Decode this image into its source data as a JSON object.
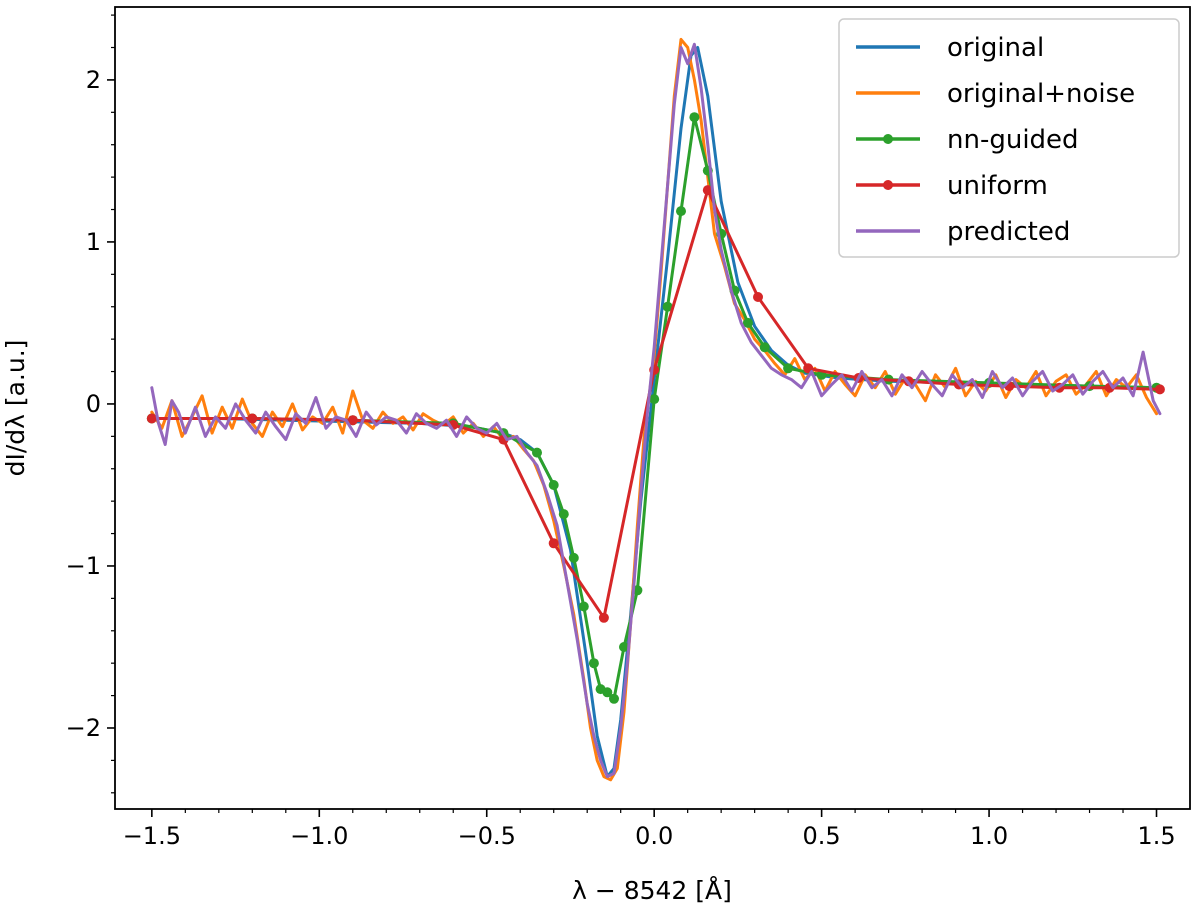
{
  "chart_data": {
    "type": "line",
    "title": "",
    "xlabel": "λ − 8542 [Å]",
    "ylabel": "dI/dλ [a.u.]",
    "xlim": [
      -1.61,
      1.6
    ],
    "ylim": [
      -2.5,
      2.45
    ],
    "xticks": [
      -1.5,
      -1.0,
      -0.5,
      0.0,
      0.5,
      1.0,
      1.5
    ],
    "xtick_labels": [
      "−1.5",
      "−1.0",
      "−0.5",
      "0.0",
      "0.5",
      "1.0",
      "1.5"
    ],
    "yticks": [
      -2,
      -1,
      0,
      1,
      2
    ],
    "ytick_labels": [
      "−2",
      "−1",
      "0",
      "1",
      "2"
    ],
    "grid": false,
    "legend_position": "top-right",
    "series": [
      {
        "name": "original",
        "color": "#1f77b4",
        "markers": false,
        "x": [
          -1.5,
          -1.3,
          -1.1,
          -0.9,
          -0.7,
          -0.55,
          -0.45,
          -0.4,
          -0.35,
          -0.3,
          -0.25,
          -0.2,
          -0.17,
          -0.14,
          -0.12,
          -0.1,
          -0.07,
          -0.04,
          0.0,
          0.04,
          0.08,
          0.11,
          0.13,
          0.16,
          0.2,
          0.25,
          0.3,
          0.35,
          0.4,
          0.45,
          0.55,
          0.7,
          0.9,
          1.1,
          1.3,
          1.5
        ],
        "y": [
          -0.09,
          -0.09,
          -0.1,
          -0.11,
          -0.12,
          -0.14,
          -0.18,
          -0.22,
          -0.3,
          -0.5,
          -0.9,
          -1.6,
          -2.05,
          -2.3,
          -2.25,
          -1.95,
          -1.3,
          -0.6,
          0.15,
          0.9,
          1.7,
          2.15,
          2.2,
          1.9,
          1.25,
          0.75,
          0.48,
          0.33,
          0.24,
          0.19,
          0.16,
          0.14,
          0.13,
          0.12,
          0.11,
          0.1
        ]
      },
      {
        "name": "original+noise",
        "color": "#ff7f0e",
        "markers": false,
        "x": [
          -1.5,
          -1.47,
          -1.44,
          -1.41,
          -1.38,
          -1.35,
          -1.32,
          -1.29,
          -1.26,
          -1.23,
          -1.2,
          -1.17,
          -1.14,
          -1.11,
          -1.08,
          -1.05,
          -1.02,
          -0.99,
          -0.96,
          -0.93,
          -0.9,
          -0.87,
          -0.84,
          -0.81,
          -0.78,
          -0.75,
          -0.72,
          -0.69,
          -0.66,
          -0.63,
          -0.6,
          -0.57,
          -0.54,
          -0.51,
          -0.48,
          -0.45,
          -0.42,
          -0.39,
          -0.36,
          -0.33,
          -0.3,
          -0.27,
          -0.24,
          -0.21,
          -0.19,
          -0.17,
          -0.15,
          -0.13,
          -0.11,
          -0.09,
          -0.07,
          -0.05,
          -0.03,
          0.0,
          0.02,
          0.04,
          0.06,
          0.08,
          0.1,
          0.12,
          0.14,
          0.16,
          0.18,
          0.21,
          0.24,
          0.27,
          0.3,
          0.33,
          0.36,
          0.39,
          0.42,
          0.45,
          0.48,
          0.51,
          0.54,
          0.57,
          0.6,
          0.63,
          0.66,
          0.69,
          0.72,
          0.75,
          0.78,
          0.81,
          0.84,
          0.87,
          0.9,
          0.93,
          0.96,
          0.99,
          1.02,
          1.05,
          1.08,
          1.11,
          1.14,
          1.17,
          1.2,
          1.23,
          1.26,
          1.29,
          1.32,
          1.35,
          1.38,
          1.41,
          1.44,
          1.47,
          1.5
        ],
        "y": [
          -0.05,
          -0.15,
          0.02,
          -0.2,
          -0.08,
          0.05,
          -0.18,
          -0.02,
          -0.15,
          0.03,
          -0.12,
          -0.2,
          -0.05,
          -0.14,
          0.0,
          -0.16,
          -0.08,
          -0.12,
          -0.02,
          -0.18,
          0.08,
          -0.1,
          -0.15,
          -0.05,
          -0.12,
          -0.08,
          -0.16,
          -0.06,
          -0.1,
          -0.13,
          -0.08,
          -0.18,
          -0.12,
          -0.2,
          -0.14,
          -0.22,
          -0.2,
          -0.28,
          -0.35,
          -0.5,
          -0.72,
          -1.0,
          -1.3,
          -1.7,
          -2.0,
          -2.2,
          -2.3,
          -2.32,
          -2.25,
          -1.9,
          -1.35,
          -0.75,
          -0.2,
          0.3,
          0.8,
          1.35,
          1.9,
          2.25,
          2.2,
          2.0,
          1.75,
          1.4,
          1.05,
          0.85,
          0.62,
          0.52,
          0.4,
          0.33,
          0.25,
          0.18,
          0.28,
          0.15,
          0.22,
          0.08,
          0.2,
          0.12,
          0.05,
          0.18,
          0.1,
          0.2,
          0.06,
          0.16,
          0.12,
          0.02,
          0.18,
          0.1,
          0.22,
          0.05,
          0.14,
          0.08,
          0.18,
          0.04,
          0.15,
          0.1,
          0.2,
          0.05,
          0.14,
          0.18,
          0.06,
          0.12,
          0.2,
          0.05,
          0.15,
          0.1,
          0.18,
          0.04,
          -0.06
        ]
      },
      {
        "name": "nn-guided",
        "color": "#2ca02c",
        "markers": true,
        "x": [
          -1.5,
          -1.2,
          -0.9,
          -0.6,
          -0.45,
          -0.35,
          -0.3,
          -0.27,
          -0.24,
          -0.21,
          -0.18,
          -0.16,
          -0.14,
          -0.12,
          -0.09,
          -0.05,
          0.0,
          0.04,
          0.08,
          0.12,
          0.16,
          0.2,
          0.24,
          0.28,
          0.33,
          0.4,
          0.5,
          0.7,
          1.0,
          1.3,
          1.5
        ],
        "y": [
          -0.09,
          -0.09,
          -0.1,
          -0.12,
          -0.18,
          -0.3,
          -0.5,
          -0.68,
          -0.95,
          -1.25,
          -1.6,
          -1.76,
          -1.78,
          -1.82,
          -1.5,
          -1.15,
          0.03,
          0.6,
          1.19,
          1.77,
          1.44,
          1.05,
          0.7,
          0.5,
          0.35,
          0.22,
          0.18,
          0.15,
          0.13,
          0.11,
          0.1
        ]
      },
      {
        "name": "uniform",
        "color": "#d62728",
        "markers": true,
        "x": [
          -1.5,
          -1.2,
          -0.9,
          -0.6,
          -0.45,
          -0.3,
          -0.15,
          0.0,
          0.16,
          0.31,
          0.46,
          0.61,
          0.76,
          0.91,
          1.06,
          1.21,
          1.36,
          1.51
        ],
        "y": [
          -0.09,
          -0.09,
          -0.1,
          -0.13,
          -0.22,
          -0.86,
          -1.32,
          0.21,
          1.32,
          0.66,
          0.22,
          0.16,
          0.14,
          0.12,
          0.11,
          0.1,
          0.1,
          0.09
        ]
      },
      {
        "name": "predicted",
        "color": "#9467bd",
        "markers": false,
        "x": [
          -1.5,
          -1.48,
          -1.46,
          -1.44,
          -1.42,
          -1.4,
          -1.37,
          -1.34,
          -1.31,
          -1.28,
          -1.25,
          -1.22,
          -1.19,
          -1.16,
          -1.13,
          -1.1,
          -1.07,
          -1.04,
          -1.01,
          -0.98,
          -0.95,
          -0.92,
          -0.89,
          -0.86,
          -0.83,
          -0.8,
          -0.77,
          -0.74,
          -0.71,
          -0.68,
          -0.65,
          -0.62,
          -0.59,
          -0.56,
          -0.53,
          -0.5,
          -0.47,
          -0.44,
          -0.41,
          -0.38,
          -0.35,
          -0.32,
          -0.29,
          -0.26,
          -0.23,
          -0.2,
          -0.18,
          -0.16,
          -0.14,
          -0.12,
          -0.1,
          -0.08,
          -0.06,
          -0.04,
          -0.02,
          0.0,
          0.02,
          0.04,
          0.06,
          0.08,
          0.1,
          0.12,
          0.14,
          0.16,
          0.18,
          0.2,
          0.23,
          0.26,
          0.29,
          0.32,
          0.35,
          0.38,
          0.41,
          0.44,
          0.47,
          0.5,
          0.53,
          0.56,
          0.59,
          0.62,
          0.65,
          0.68,
          0.71,
          0.74,
          0.77,
          0.8,
          0.83,
          0.86,
          0.89,
          0.92,
          0.95,
          0.98,
          1.01,
          1.04,
          1.07,
          1.1,
          1.13,
          1.16,
          1.19,
          1.22,
          1.25,
          1.28,
          1.31,
          1.34,
          1.37,
          1.4,
          1.43,
          1.46,
          1.49,
          1.51
        ],
        "y": [
          0.1,
          -0.12,
          -0.25,
          0.02,
          -0.05,
          -0.18,
          -0.02,
          -0.2,
          -0.08,
          -0.15,
          0.0,
          -0.1,
          -0.18,
          -0.05,
          -0.14,
          -0.22,
          -0.06,
          -0.12,
          0.04,
          -0.15,
          -0.08,
          -0.1,
          -0.2,
          -0.05,
          -0.13,
          -0.08,
          -0.1,
          -0.18,
          -0.06,
          -0.12,
          -0.15,
          -0.1,
          -0.2,
          -0.08,
          -0.15,
          -0.18,
          -0.12,
          -0.22,
          -0.2,
          -0.3,
          -0.38,
          -0.55,
          -0.75,
          -1.1,
          -1.45,
          -1.85,
          -2.05,
          -2.2,
          -2.3,
          -2.28,
          -2.0,
          -1.6,
          -1.1,
          -0.55,
          -0.05,
          0.35,
          0.85,
          1.35,
          1.85,
          2.2,
          2.1,
          2.22,
          1.95,
          1.6,
          1.2,
          0.95,
          0.7,
          0.5,
          0.38,
          0.3,
          0.22,
          0.18,
          0.15,
          0.1,
          0.2,
          0.05,
          0.12,
          0.18,
          0.08,
          0.2,
          0.1,
          0.15,
          0.05,
          0.18,
          0.1,
          0.2,
          0.12,
          0.05,
          0.18,
          0.1,
          0.15,
          0.04,
          0.2,
          0.1,
          0.16,
          0.05,
          0.14,
          0.2,
          0.08,
          0.12,
          0.18,
          0.06,
          0.14,
          0.2,
          0.1,
          0.16,
          0.05,
          0.32,
          0.02,
          -0.06
        ]
      }
    ]
  }
}
